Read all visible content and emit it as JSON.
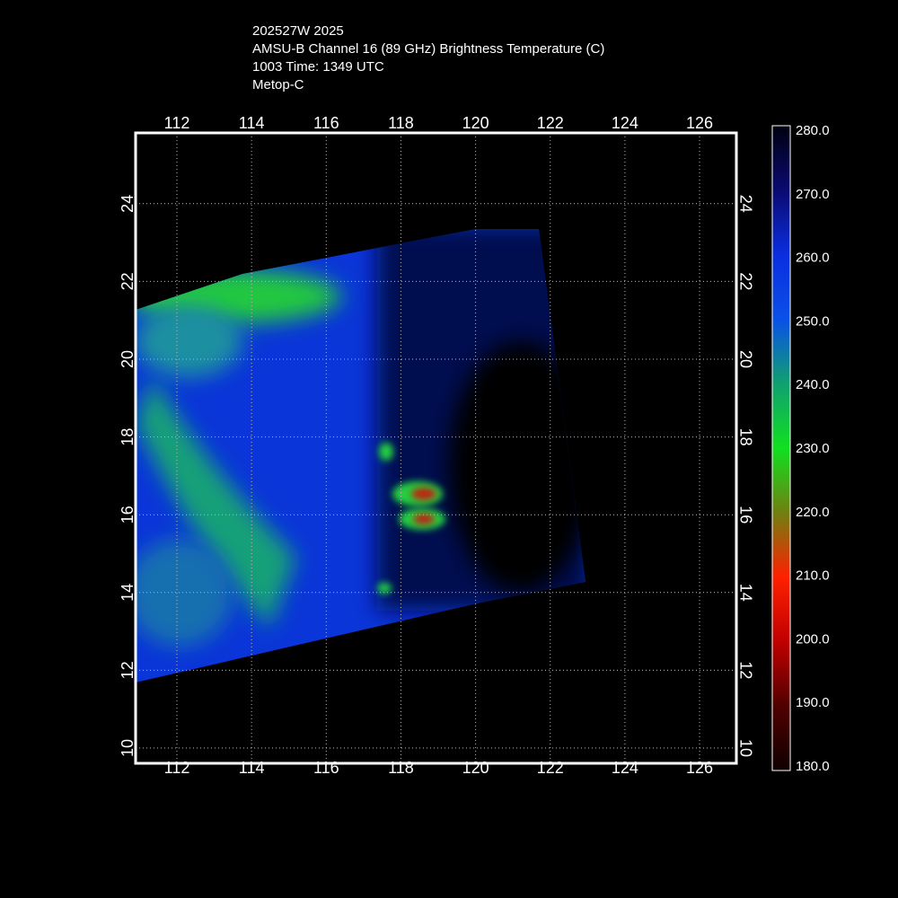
{
  "header": {
    "lines": [
      "202527W 2025",
      "AMSU-B Channel 16 (89 GHz) Brightness Temperature (C)",
      "1003 Time: 1349 UTC",
      "Metop-C"
    ]
  },
  "map": {
    "lon_labels": [
      "112",
      "114",
      "116",
      "118",
      "120",
      "122",
      "124",
      "126"
    ],
    "lat_labels": [
      "10",
      "12",
      "14",
      "16",
      "18",
      "20",
      "22",
      "24"
    ]
  },
  "colorbar": {
    "labels": [
      "280.0",
      "270.0",
      "260.0",
      "250.0",
      "240.0",
      "230.0",
      "220.0",
      "210.0",
      "200.0",
      "190.0",
      "180.0"
    ]
  }
}
